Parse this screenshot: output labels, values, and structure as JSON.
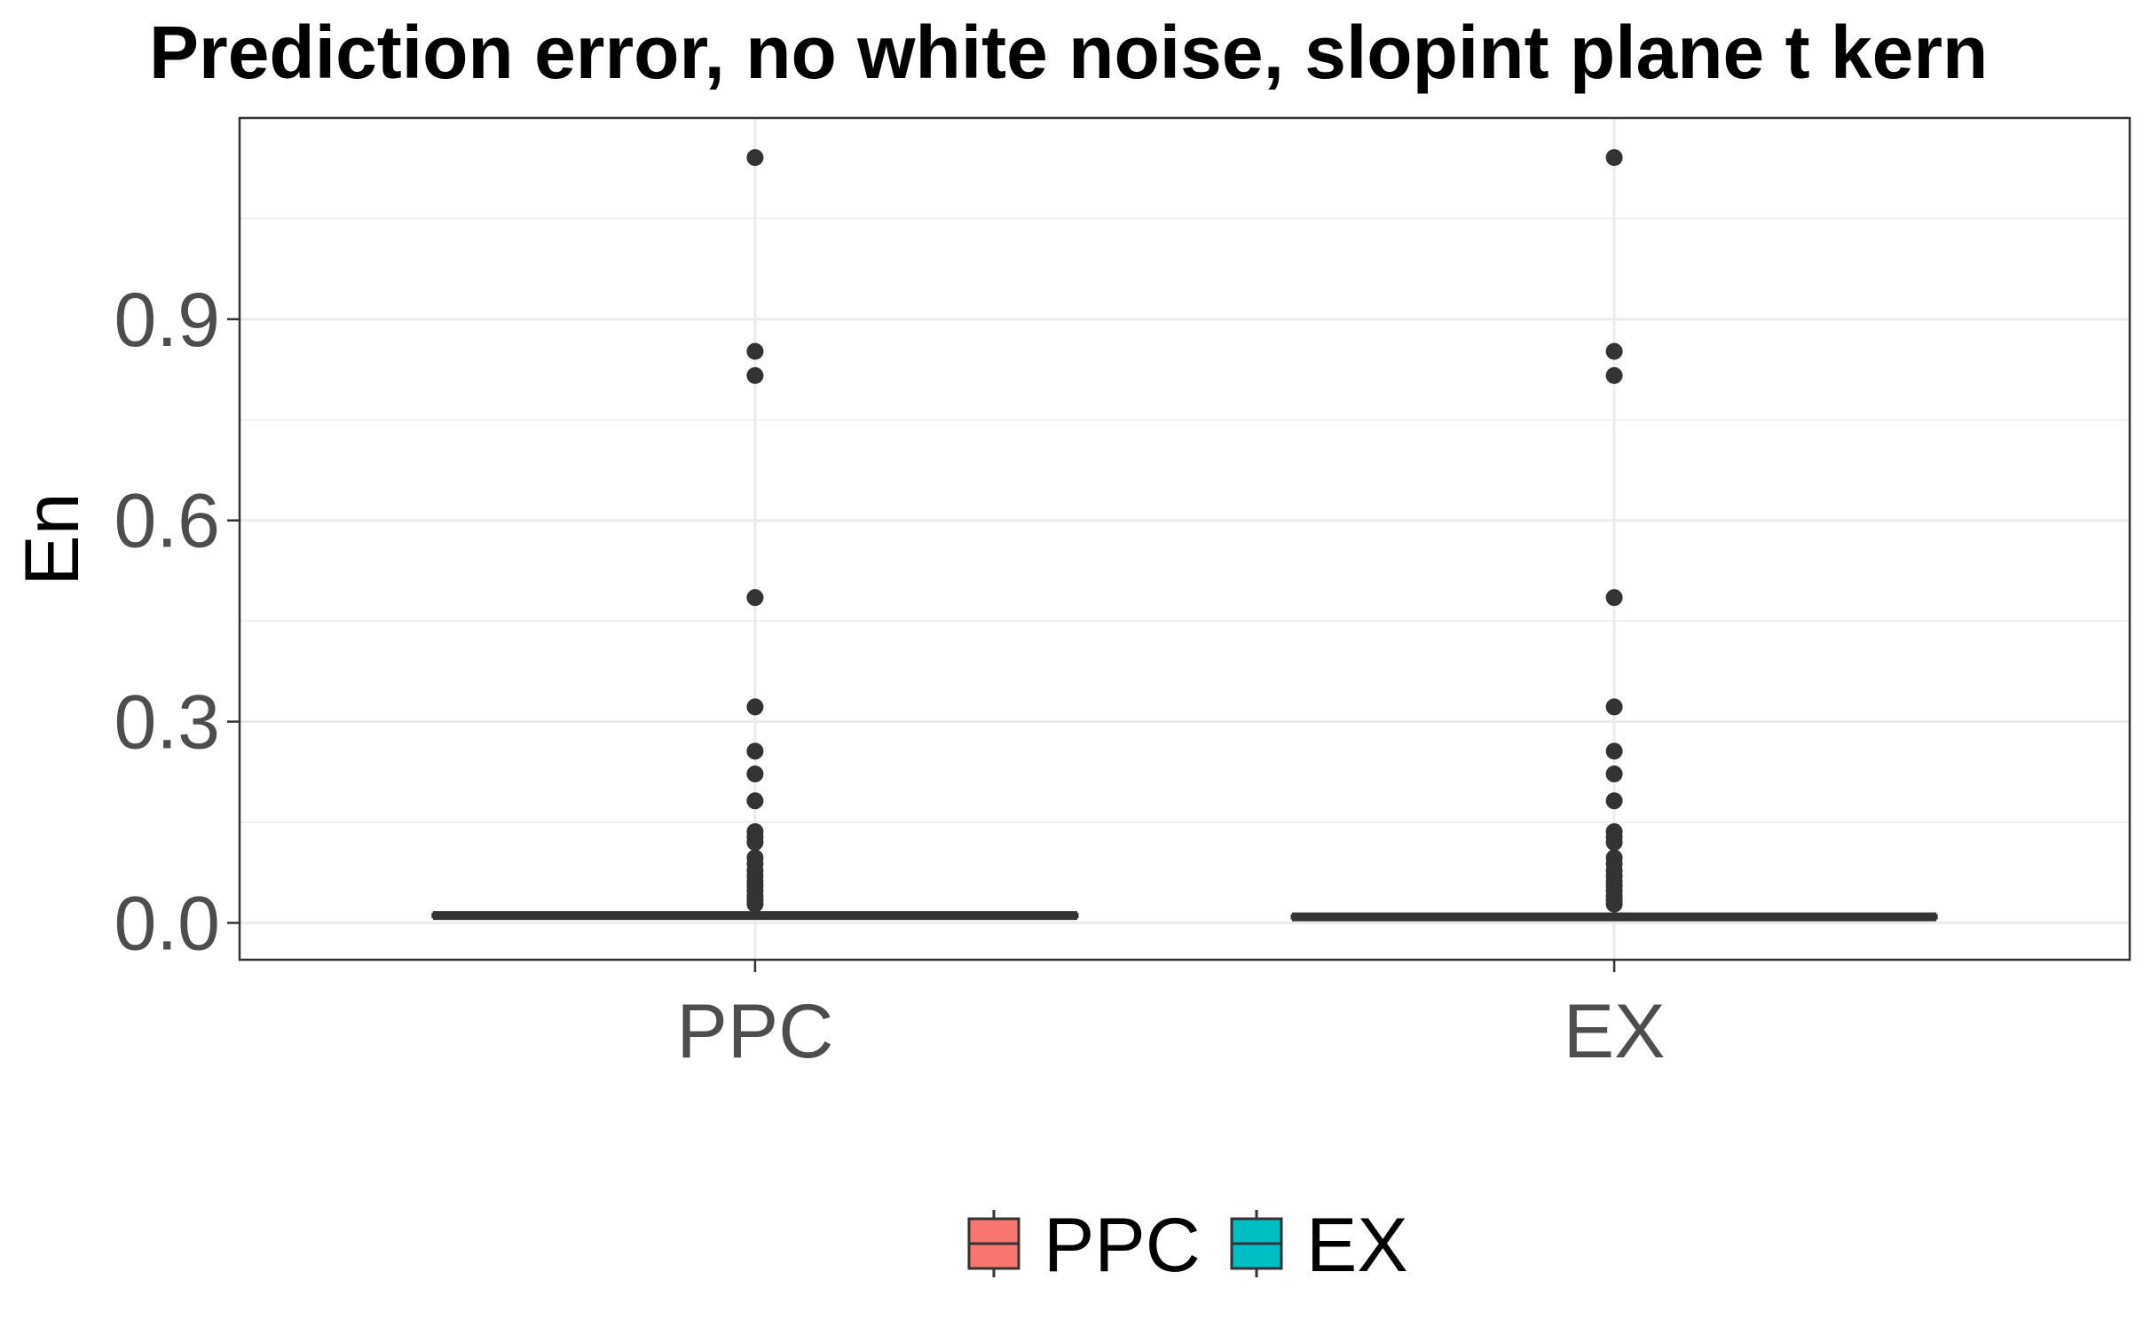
{
  "chart_data": {
    "type": "boxplot",
    "title": "Prediction error, no white noise, slopint plane t kern",
    "xlabel": "",
    "ylabel": "En",
    "categories": [
      "PPC",
      "EX"
    ],
    "ylim": [
      -0.055,
      1.2
    ],
    "yticks": [
      {
        "value": 0.0,
        "label": "0.0"
      },
      {
        "value": 0.3,
        "label": "0.3"
      },
      {
        "value": 0.6,
        "label": "0.6"
      },
      {
        "value": 0.9,
        "label": "0.9"
      }
    ],
    "grid": true,
    "legend_position": "bottom",
    "series": [
      {
        "name": "PPC",
        "color": "#F8766D",
        "median": 0.011,
        "q1": 0.009,
        "q3": 0.013,
        "whisker_low": 0.008,
        "whisker_high": 0.02,
        "outliers": [
          1.141,
          0.852,
          0.816,
          0.485,
          0.322,
          0.256,
          0.222,
          0.182,
          0.136,
          0.128,
          0.12,
          0.097,
          0.088,
          0.078,
          0.07,
          0.062,
          0.055,
          0.048,
          0.04,
          0.034,
          0.028
        ]
      },
      {
        "name": "EX",
        "color": "#00BFC4",
        "median": 0.009,
        "q1": 0.007,
        "q3": 0.011,
        "whisker_low": 0.006,
        "whisker_high": 0.018,
        "outliers": [
          1.141,
          0.852,
          0.816,
          0.485,
          0.322,
          0.256,
          0.222,
          0.182,
          0.136,
          0.128,
          0.12,
          0.097,
          0.088,
          0.078,
          0.07,
          0.062,
          0.055,
          0.048,
          0.04,
          0.034,
          0.028
        ]
      }
    ]
  }
}
